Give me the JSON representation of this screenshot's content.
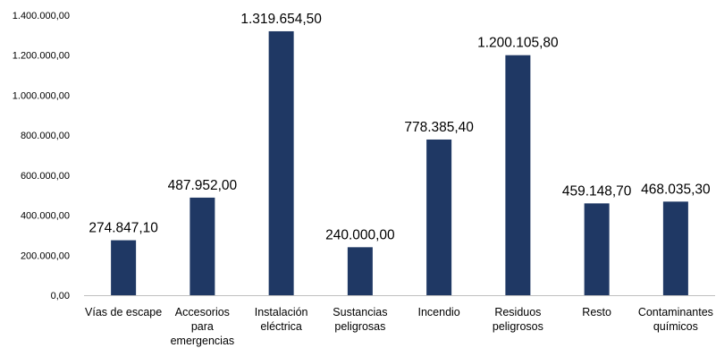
{
  "chart_data": {
    "type": "bar",
    "categories": [
      "Vías de escape",
      "Accesorios para emergencias",
      "Instalación eléctrica",
      "Sustancias peligrosas",
      "Incendio",
      "Residuos peligrosos",
      "Resto",
      "Contaminantes químicos"
    ],
    "category_lines": [
      [
        "Vías de escape"
      ],
      [
        "Accesorios",
        "para",
        "emergencias"
      ],
      [
        "Instalación",
        "eléctrica"
      ],
      [
        "Sustancias",
        "peligrosas"
      ],
      [
        "Incendio"
      ],
      [
        "Residuos",
        "peligrosos"
      ],
      [
        "Resto"
      ],
      [
        "Contaminantes",
        "químicos"
      ]
    ],
    "values": [
      274847.1,
      487952.0,
      1319654.5,
      240000.0,
      778385.4,
      1200105.8,
      459148.7,
      468035.3
    ],
    "data_labels": [
      "274.847,10",
      "487.952,00",
      "1.319.654,50",
      "240.000,00",
      "778.385,40",
      "1.200.105,80",
      "459.148,70",
      "468.035,30"
    ],
    "yticks": [
      0,
      200000,
      400000,
      600000,
      800000,
      1000000,
      1200000,
      1400000
    ],
    "ytick_labels": [
      "0,00",
      "200.000,00",
      "400.000,00",
      "600.000,00",
      "800.000,00",
      "1.000.000,00",
      "1.200.000,00",
      "1.400.000,00"
    ],
    "ylim": [
      0,
      1400000
    ],
    "title": "",
    "xlabel": "",
    "ylabel": "",
    "grid": false,
    "legend": "none",
    "bar_color": "#1f3864"
  }
}
